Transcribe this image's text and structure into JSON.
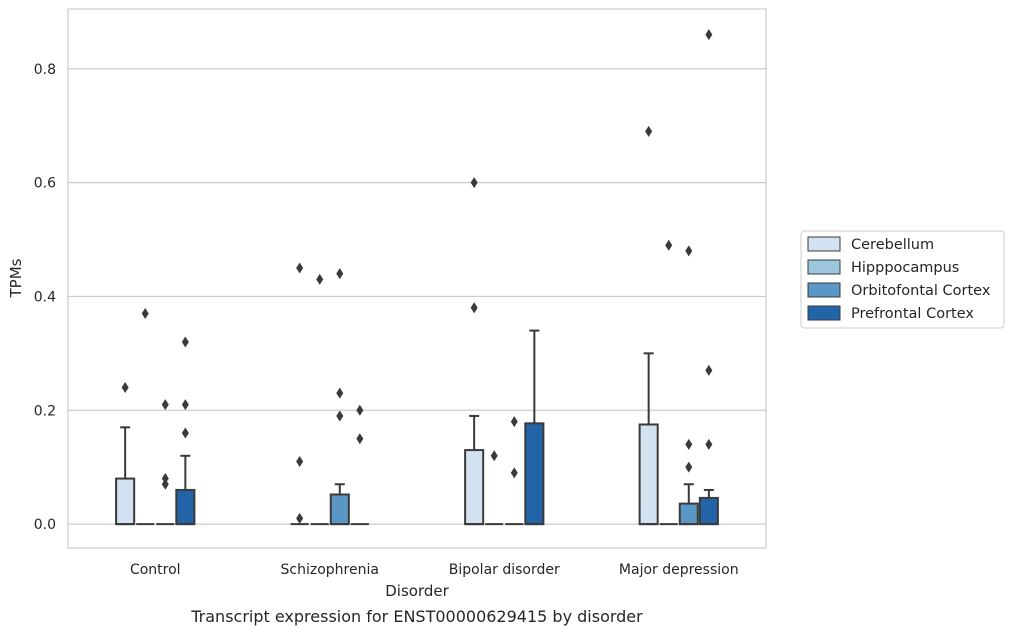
{
  "caption": "Transcript expression for ENST00000629415 by disorder",
  "chart_data": {
    "type": "box",
    "title": "",
    "xlabel": "Disorder",
    "ylabel": "TPMs",
    "ylim": [
      -0.042,
      0.905
    ],
    "yticks": [
      0.0,
      0.2,
      0.4,
      0.6,
      0.8
    ],
    "ytick_labels": [
      "0.0",
      "0.2",
      "0.4",
      "0.6",
      "0.8"
    ],
    "grid": "horizontal",
    "legend_position": "right",
    "categories": [
      "Control",
      "Schizophrenia",
      "Bipolar disorder",
      "Major depression"
    ],
    "series": [
      {
        "name": "Cerebellum",
        "color": "#d2e2f1",
        "boxes": [
          {
            "q1": 0.0,
            "median": 0.0,
            "q3": 0.08,
            "whisker_low": 0.0,
            "whisker_high": 0.17,
            "outliers": [
              0.24
            ]
          },
          {
            "q1": 0.0,
            "median": 0.0,
            "q3": 0.0,
            "whisker_low": 0.0,
            "whisker_high": 0.0,
            "outliers": [
              0.01,
              0.11,
              0.45
            ]
          },
          {
            "q1": 0.0,
            "median": 0.0,
            "q3": 0.13,
            "whisker_low": 0.0,
            "whisker_high": 0.19,
            "outliers": [
              0.38,
              0.6
            ]
          },
          {
            "q1": 0.0,
            "median": 0.0,
            "q3": 0.175,
            "whisker_low": 0.0,
            "whisker_high": 0.3,
            "outliers": [
              0.69
            ]
          }
        ]
      },
      {
        "name": "Hipppocampus",
        "color": "#9cc5de",
        "boxes": [
          {
            "q1": 0.0,
            "median": 0.0,
            "q3": 0.0,
            "whisker_low": 0.0,
            "whisker_high": 0.0,
            "outliers": [
              0.37
            ]
          },
          {
            "q1": 0.0,
            "median": 0.0,
            "q3": 0.0,
            "whisker_low": 0.0,
            "whisker_high": 0.0,
            "outliers": [
              0.43
            ]
          },
          {
            "q1": 0.0,
            "median": 0.0,
            "q3": 0.0,
            "whisker_low": 0.0,
            "whisker_high": 0.0,
            "outliers": [
              0.12
            ]
          },
          {
            "q1": 0.0,
            "median": 0.0,
            "q3": 0.0,
            "whisker_low": 0.0,
            "whisker_high": 0.0,
            "outliers": [
              0.49
            ]
          }
        ]
      },
      {
        "name": "Orbitofontal Cortex",
        "color": "#5a97c4",
        "boxes": [
          {
            "q1": 0.0,
            "median": 0.0,
            "q3": 0.0,
            "whisker_low": 0.0,
            "whisker_high": 0.0,
            "outliers": [
              0.07,
              0.08,
              0.21
            ]
          },
          {
            "q1": 0.0,
            "median": 0.0,
            "q3": 0.052,
            "whisker_low": 0.0,
            "whisker_high": 0.07,
            "outliers": [
              0.19,
              0.23,
              0.44
            ]
          },
          {
            "q1": 0.0,
            "median": 0.0,
            "q3": 0.0,
            "whisker_low": 0.0,
            "whisker_high": 0.0,
            "outliers": [
              0.09,
              0.18
            ]
          },
          {
            "q1": 0.0,
            "median": 0.0,
            "q3": 0.036,
            "whisker_low": 0.0,
            "whisker_high": 0.07,
            "outliers": [
              0.1,
              0.14,
              0.48
            ]
          }
        ]
      },
      {
        "name": "Prefrontal Cortex",
        "color": "#2364a8",
        "boxes": [
          {
            "q1": 0.0,
            "median": 0.0,
            "q3": 0.06,
            "whisker_low": 0.0,
            "whisker_high": 0.12,
            "outliers": [
              0.16,
              0.21,
              0.32
            ]
          },
          {
            "q1": 0.0,
            "median": 0.0,
            "q3": 0.0,
            "whisker_low": 0.0,
            "whisker_high": 0.0,
            "outliers": [
              0.15,
              0.2
            ]
          },
          {
            "q1": 0.0,
            "median": 0.0,
            "q3": 0.177,
            "whisker_low": 0.0,
            "whisker_high": 0.34,
            "outliers": []
          },
          {
            "q1": 0.0,
            "median": 0.0,
            "q3": 0.046,
            "whisker_low": 0.0,
            "whisker_high": 0.06,
            "outliers": [
              0.14,
              0.27,
              0.86
            ]
          }
        ]
      }
    ]
  }
}
